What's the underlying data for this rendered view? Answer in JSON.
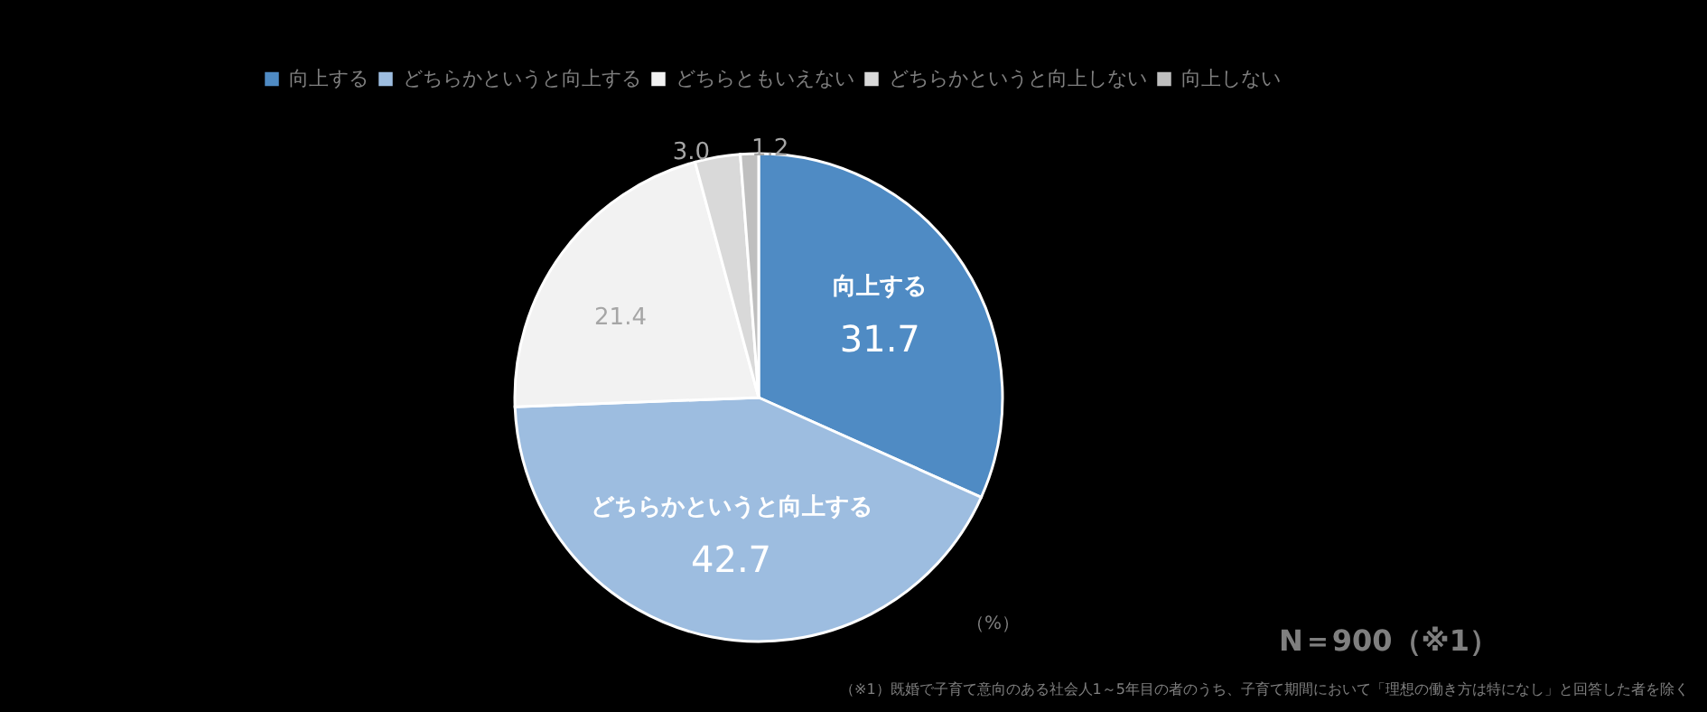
{
  "chart_data": {
    "type": "pie",
    "categories": [
      "向上する",
      "どちらかというと向上する",
      "どちらともいえない",
      "どちらかというと向上しない",
      "向上しない"
    ],
    "values": [
      31.7,
      42.7,
      21.4,
      3.0,
      1.2
    ],
    "colors": [
      "#4f8bc4",
      "#9dbde0",
      "#f2f2f2",
      "#d9d9d9",
      "#bfbfbf"
    ],
    "value_labels": [
      "31.7",
      "42.7",
      "21.4",
      "3.0",
      "1.2"
    ],
    "legend": "top",
    "annotations": [
      "（%）",
      "N＝900（※1）",
      "（※1）既婚で子育て意向のある社会人1～5年目の者のうち、子育て期間において「理想の働き方は特になし」と回答した者を除く"
    ]
  }
}
